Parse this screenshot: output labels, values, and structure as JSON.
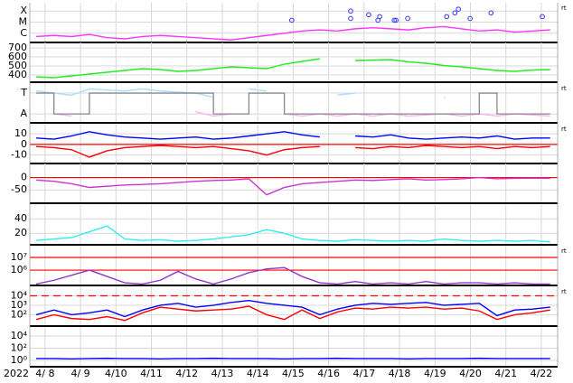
{
  "chart_data": {
    "type": "line",
    "year": "2022",
    "xlim": [
      7.57,
      22.46
    ],
    "xticks": [
      {
        "value": 8,
        "label": "4/ 8"
      },
      {
        "value": 9,
        "label": "4/ 9"
      },
      {
        "value": 10,
        "label": "4/10"
      },
      {
        "value": 11,
        "label": "4/11"
      },
      {
        "value": 12,
        "label": "4/12"
      },
      {
        "value": 13,
        "label": "4/13"
      },
      {
        "value": 14,
        "label": "4/14"
      },
      {
        "value": 15,
        "label": "4/15"
      },
      {
        "value": 16,
        "label": "4/16"
      },
      {
        "value": 17,
        "label": "4/17"
      },
      {
        "value": 18,
        "label": "4/18"
      },
      {
        "value": 19,
        "label": "4/19"
      },
      {
        "value": 20,
        "label": "4/20"
      },
      {
        "value": 21,
        "label": "4/21"
      },
      {
        "value": 22,
        "label": "4/22"
      }
    ],
    "x": [
      7.75,
      8.25,
      8.75,
      9.25,
      9.75,
      10.25,
      10.75,
      11.25,
      11.75,
      12.25,
      12.75,
      13.25,
      13.75,
      14.25,
      14.75,
      15.25,
      15.75,
      16.25,
      16.75,
      17.25,
      17.75,
      18.25,
      18.75,
      19.25,
      19.75,
      20.25,
      20.75,
      21.25,
      21.75,
      22.25
    ],
    "panels": [
      {
        "ylim": [
          -6.83,
          -3.25
        ],
        "note": "rt",
        "yticks": [
          {
            "value": -4,
            "label": "X"
          },
          {
            "value": -5,
            "label": "M"
          },
          {
            "value": -6,
            "label": "C"
          }
        ],
        "series": [
          {
            "color": "#ff33ff",
            "values": [
              -6.3,
              -6.2,
              -6.3,
              -6.1,
              -6.4,
              -6.5,
              -6.3,
              -6.2,
              -6.3,
              -6.4,
              -6.5,
              -6.6,
              -6.4,
              -6.2,
              -6.0,
              -5.8,
              -5.7,
              -5.8,
              -5.6,
              -5.5,
              -5.6,
              -5.7,
              -5.5,
              -5.4,
              -5.6,
              -5.8,
              -5.7,
              -5.9,
              -5.8,
              -5.7
            ]
          }
        ],
        "markers": {
          "color": "#3333ff",
          "x": [
            14.96,
            16.62,
            16.62,
            17.13,
            17.39,
            17.44,
            17.85,
            17.9,
            18.23,
            19.33,
            19.56,
            19.66,
            19.99,
            20.58,
            22.03
          ],
          "values": [
            -4.83,
            -4.0,
            -4.67,
            -4.33,
            -4.83,
            -4.5,
            -4.83,
            -4.83,
            -4.67,
            -4.5,
            -4.17,
            -3.83,
            -4.67,
            -4.17,
            -4.5
          ]
        }
      },
      {
        "ylim": [
          320,
          760
        ],
        "yticks": [
          400,
          500,
          600,
          700
        ],
        "series": [
          {
            "color": "#22ee22",
            "values": [
              380,
              370,
              390,
              410,
              430,
              450,
              470,
              460,
              440,
              450,
              470,
              490,
              480,
              470,
              520,
              550,
              580,
              null,
              560,
              565,
              570,
              545,
              530,
              505,
              490,
              470,
              450,
              440,
              455,
              460
            ]
          }
        ]
      },
      {
        "ylim": [
          -0.43,
          1.48
        ],
        "note": "rt",
        "yticks": [
          {
            "value": 1,
            "label": "T"
          },
          {
            "value": 0,
            "label": "A"
          }
        ],
        "series": [
          {
            "color": "#aaddff",
            "values": [
              1.1,
              1.0,
              0.9,
              1.2,
              1.15,
              1.1,
              1.2,
              1.1,
              1.05,
              1.0,
              0.8,
              null,
              1.2,
              1.1,
              null,
              null,
              null,
              0.9,
              1.0,
              null,
              null,
              null,
              null,
              0.8,
              null,
              null,
              null,
              null,
              null,
              null
            ]
          },
          {
            "color": "#ffb0f0",
            "values": [
              null,
              0.0,
              -0.1,
              null,
              null,
              null,
              null,
              null,
              null,
              0.1,
              -0.1,
              0.0,
              null,
              null,
              0.0,
              -0.1,
              0.0,
              -0.1,
              0.0,
              -0.1,
              0.0,
              -0.1,
              -0.05,
              0.0,
              -0.1,
              0.0,
              -0.1,
              0.0,
              -0.05,
              -0.1
            ]
          },
          {
            "color": "#888888",
            "step": true,
            "values": [
              1,
              0,
              0,
              1,
              1,
              1,
              1,
              1,
              1,
              1,
              0,
              0,
              1,
              1,
              0,
              0,
              0,
              0,
              0,
              0,
              0,
              0,
              0,
              0,
              0,
              1,
              0,
              0,
              0,
              0
            ]
          }
        ]
      },
      {
        "ylim": [
          -18,
          19.5
        ],
        "note": "rt",
        "yticks": [
          10,
          0,
          -10
        ],
        "hlines": [
          {
            "value": 0,
            "color": "#ff0000"
          }
        ],
        "series": [
          {
            "color": "#0000ff",
            "values": [
              6,
              5,
              8,
              12,
              9,
              7,
              6,
              5,
              6,
              7,
              5,
              6,
              8,
              10,
              12,
              9,
              7,
              null,
              8,
              7,
              9,
              6,
              5,
              6,
              7,
              6,
              8,
              5,
              6,
              6
            ]
          },
          {
            "color": "#ff0000",
            "values": [
              -2,
              -3,
              -5,
              -12,
              -6,
              -3,
              -2,
              -1,
              -2,
              -3,
              -2,
              -4,
              -6,
              -10,
              -5,
              -3,
              -2,
              null,
              -3,
              -4,
              -2,
              -3,
              -1,
              -2,
              -3,
              -2,
              -4,
              -2,
              -3,
              -2
            ]
          }
        ]
      },
      {
        "ylim": [
          -104,
          57
        ],
        "yticks": [
          0,
          -50
        ],
        "hlines": [
          {
            "value": 0,
            "color": "#ff0000"
          }
        ],
        "series": [
          {
            "color": "#cc33cc",
            "values": [
              -10,
              -15,
              -25,
              -40,
              -35,
              -30,
              -28,
              -25,
              -20,
              -15,
              -12,
              -10,
              -5,
              -70,
              -40,
              -25,
              -20,
              -15,
              -10,
              -12,
              -8,
              -5,
              -10,
              -8,
              -5,
              0,
              -5,
              -3,
              -2,
              -3
            ]
          }
        ]
      },
      {
        "ylim": [
          4,
          59
        ],
        "yticks": [
          40,
          20
        ],
        "series": [
          {
            "color": "#33eeee",
            "values": [
              10,
              12,
              14,
              22,
              30,
              12,
              10,
              11,
              9,
              10,
              12,
              15,
              18,
              25,
              20,
              12,
              10,
              9,
              11,
              10,
              9,
              10,
              9,
              12,
              10,
              9,
              10,
              9,
              10,
              8
            ]
          }
        ]
      },
      {
        "ylim": [
          4.79,
          7.93
        ],
        "note": "rt",
        "yticks": [
          {
            "value": 7,
            "label": "10⁷"
          },
          {
            "value": 6,
            "label": "10⁶"
          }
        ],
        "hlines": [
          {
            "value": 7,
            "color": "#ff0000"
          },
          {
            "value": 6,
            "color": "#ff0000"
          }
        ],
        "series": [
          {
            "color": "#9933cc",
            "values": [
              4.9,
              5.2,
              5.6,
              6.0,
              5.5,
              5.0,
              4.9,
              5.2,
              5.9,
              5.3,
              4.9,
              5.3,
              5.8,
              6.1,
              6.2,
              5.5,
              5.0,
              4.9,
              5.1,
              4.9,
              5.0,
              4.9,
              5.1,
              4.9,
              5.0,
              5.0,
              4.9,
              5.0,
              4.9,
              4.9
            ]
          }
        ]
      },
      {
        "ylim": [
          0.8,
          5
        ],
        "note": "rt",
        "yticks": [
          {
            "value": 4,
            "label": "10⁴"
          },
          {
            "value": 3,
            "label": "10³"
          },
          {
            "value": 2,
            "label": "10²"
          }
        ],
        "hlines": [
          {
            "value": 4,
            "color": "#ff0000",
            "dashed": true
          }
        ],
        "series": [
          {
            "color": "#0000ff",
            "values": [
              2.0,
              2.5,
              2.0,
              2.2,
              2.5,
              1.8,
              2.5,
              3.0,
              3.2,
              2.8,
              3.0,
              3.3,
              3.5,
              3.2,
              3.0,
              2.8,
              2.0,
              2.6,
              3.0,
              3.2,
              3.1,
              3.2,
              3.3,
              3.0,
              3.1,
              3.2,
              1.9,
              2.5,
              2.6,
              2.8
            ]
          },
          {
            "color": "#ff0000",
            "values": [
              1.5,
              2.0,
              1.6,
              1.5,
              1.8,
              1.4,
              2.2,
              2.8,
              2.6,
              2.4,
              2.5,
              2.6,
              2.9,
              2.0,
              1.5,
              2.5,
              1.6,
              2.3,
              2.7,
              2.6,
              2.8,
              2.7,
              2.8,
              2.6,
              2.7,
              2.4,
              1.5,
              2.0,
              2.2,
              2.5
            ]
          }
        ]
      },
      {
        "ylim": [
          -1.04,
          5.48
        ],
        "yticks": [
          {
            "value": 4,
            "label": "10⁴"
          },
          {
            "value": 2,
            "label": "10²"
          },
          {
            "value": 0,
            "label": "10⁰"
          }
        ],
        "series": [
          {
            "color": "#0000ff",
            "values": [
              0.3,
              0.3,
              0.25,
              0.3,
              0.35,
              0.3,
              0.3,
              0.25,
              0.3,
              0.3,
              0.35,
              0.3,
              0.3,
              0.3,
              0.25,
              0.3,
              0.3,
              0.35,
              0.3,
              0.3,
              0.3,
              0.25,
              0.3,
              0.3,
              0.3,
              0.35,
              0.3,
              0.3,
              0.3,
              0.3
            ]
          }
        ]
      }
    ]
  }
}
